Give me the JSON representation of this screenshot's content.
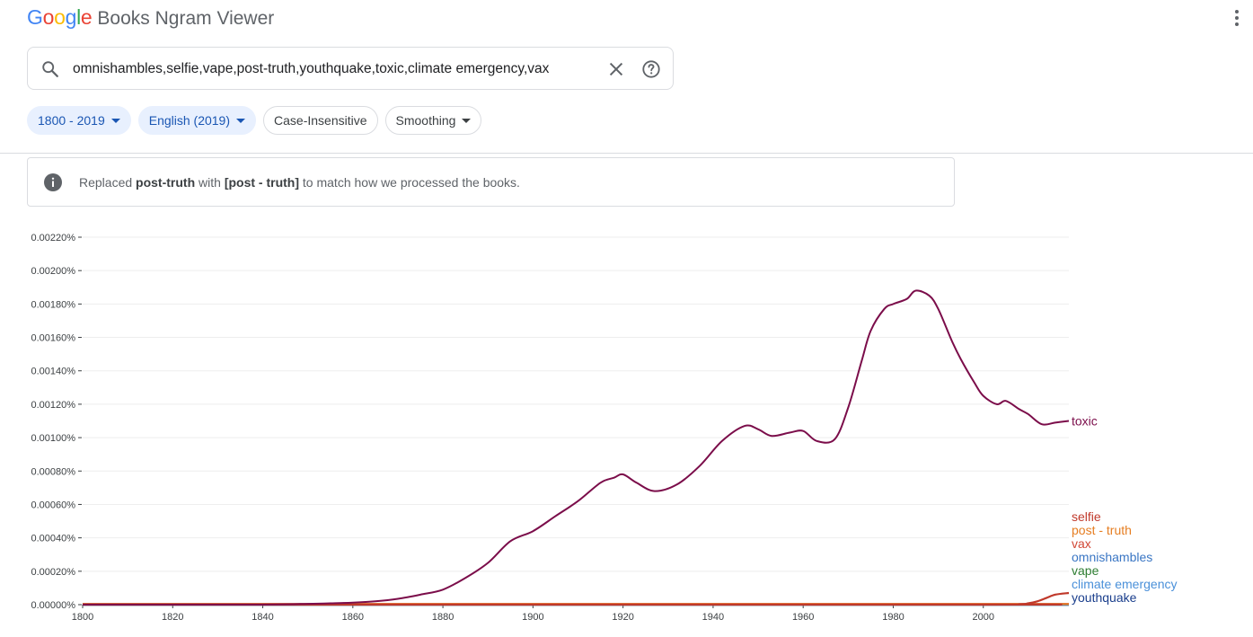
{
  "header": {
    "logo_letters": [
      {
        "ch": "G",
        "color": "#4285F4"
      },
      {
        "ch": "o",
        "color": "#EA4335"
      },
      {
        "ch": "o",
        "color": "#FBBC05"
      },
      {
        "ch": "g",
        "color": "#4285F4"
      },
      {
        "ch": "l",
        "color": "#34A853"
      },
      {
        "ch": "e",
        "color": "#EA4335"
      }
    ],
    "app_name": "Books Ngram Viewer",
    "menu_icon": "more-vert-icon"
  },
  "search": {
    "value": "omnishambles,selfie,vape,post-truth,youthquake,toxic,climate emergency,vax",
    "icons": [
      "search-icon",
      "close-icon",
      "help-icon"
    ]
  },
  "filters": {
    "year_range": "1800 - 2019",
    "corpus": "English (2019)",
    "case": "Case-Insensitive",
    "smoothing": "Smoothing"
  },
  "notice": {
    "prefix": "Replaced",
    "term": "post-truth",
    "middle": "with",
    "replacement": "[post - truth]",
    "suffix": "to match how we processed the books."
  },
  "chart_data": {
    "type": "line",
    "x_range": [
      1800,
      2019
    ],
    "ylim": [
      0,
      0.0022
    ],
    "x_ticks": [
      "1800",
      "1820",
      "1840",
      "1860",
      "1880",
      "1900",
      "1920",
      "1940",
      "1960",
      "1980",
      "2000"
    ],
    "y_ticks": [
      "0.00000%",
      "0.00020%",
      "0.00040%",
      "0.00060%",
      "0.00080%",
      "0.00100%",
      "0.00120%",
      "0.00140%",
      "0.00160%",
      "0.00180%",
      "0.00200%",
      "0.00220%"
    ],
    "grid": "horizontal",
    "legend_placement": "right end of lines",
    "series": [
      {
        "name": "toxic",
        "color": "#7b0d4a",
        "x": [
          1800,
          1840,
          1850,
          1855,
          1860,
          1865,
          1870,
          1875,
          1880,
          1885,
          1890,
          1895,
          1900,
          1905,
          1910,
          1915,
          1918,
          1920,
          1923,
          1927,
          1932,
          1937,
          1942,
          1947,
          1950,
          1953,
          1957,
          1960,
          1963,
          1967,
          1970,
          1973,
          1975,
          1978,
          1980,
          1983,
          1985,
          1988,
          1990,
          1993,
          1995,
          1998,
          2000,
          2003,
          2005,
          2008,
          2010,
          2013,
          2016,
          2019
        ],
        "values": [
          5e-07,
          1e-06,
          5e-06,
          8e-06,
          1.2e-05,
          2e-05,
          3.5e-05,
          6e-05,
          9e-05,
          0.00016,
          0.00025,
          0.00038,
          0.00044,
          0.00053,
          0.00062,
          0.00073,
          0.00076,
          0.00078,
          0.00073,
          0.00068,
          0.00072,
          0.00083,
          0.00098,
          0.00107,
          0.00105,
          0.00101,
          0.00103,
          0.00104,
          0.00098,
          0.00099,
          0.00118,
          0.00146,
          0.00164,
          0.00177,
          0.0018,
          0.00183,
          0.00188,
          0.00185,
          0.00177,
          0.00158,
          0.00147,
          0.00133,
          0.00125,
          0.0012,
          0.00122,
          0.00117,
          0.00114,
          0.00108,
          0.00109,
          0.0011
        ]
      },
      {
        "name": "selfie",
        "color": "#c0392b",
        "x": [
          1800,
          2000,
          2008,
          2010,
          2012,
          2014,
          2016,
          2019
        ],
        "values": [
          0,
          0,
          2e-06,
          8e-06,
          2e-05,
          4e-05,
          6e-05,
          7e-05
        ]
      },
      {
        "name": "post - truth",
        "color": "#e67e22",
        "x": [
          1800,
          2019
        ],
        "values": [
          3e-06,
          3e-06
        ]
      },
      {
        "name": "vax",
        "color": "#d14836",
        "x": [
          1800,
          2019
        ],
        "values": [
          4e-06,
          4e-06
        ]
      },
      {
        "name": "omnishambles",
        "color": "#3a76c4",
        "x": [
          1800,
          2019
        ],
        "values": [
          0,
          0
        ]
      },
      {
        "name": "vape",
        "color": "#2e7d32",
        "x": [
          1800,
          2019
        ],
        "values": [
          0,
          0
        ]
      },
      {
        "name": "climate emergency",
        "color": "#4a90d9",
        "x": [
          1800,
          2019
        ],
        "values": [
          0,
          0
        ]
      },
      {
        "name": "youthquake",
        "color": "#1a3e8c",
        "x": [
          1800,
          2019
        ],
        "values": [
          0,
          0
        ]
      }
    ]
  }
}
